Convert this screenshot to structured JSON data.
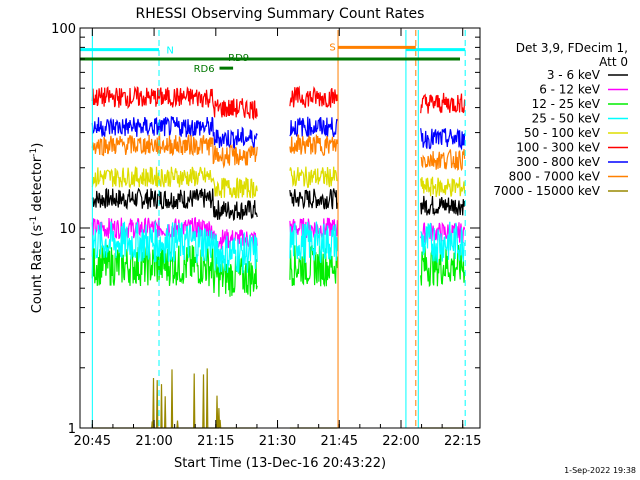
{
  "chart_data": {
    "type": "line",
    "title": "RHESSI Observing Summary Count Rates",
    "xlabel": "Start Time (13-Dec-16 20:43:22)",
    "ylabel_main": "Count Rate (s",
    "ylabel_sup": "-1",
    "ylabel_tail": " detector",
    "ylabel_end": ")",
    "yscale": "log",
    "ylim": [
      1,
      100
    ],
    "xlim_minutes": [
      20.7,
      22.32
    ],
    "x_ticks": [
      {
        "label": "20:45",
        "t": 20.75
      },
      {
        "label": "21:00",
        "t": 21.0
      },
      {
        "label": "21:15",
        "t": 21.25
      },
      {
        "label": "21:30",
        "t": 21.5
      },
      {
        "label": "21:45",
        "t": 21.75
      },
      {
        "label": "22:00",
        "t": 22.0
      },
      {
        "label": "22:15",
        "t": 22.25
      }
    ],
    "y_ticks": [
      {
        "label": "1",
        "v": 1
      },
      {
        "label": "10",
        "v": 10
      },
      {
        "label": "100",
        "v": 100
      }
    ],
    "legend_header": [
      "Det 3,9, FDecim 1,",
      "Att 0"
    ],
    "legend_placement": "right",
    "series": [
      {
        "name": "3 - 6 keV",
        "color": "#000000",
        "level": 14,
        "post_flare": 13
      },
      {
        "name": "6 - 12 keV",
        "color": "#ff00ff",
        "level": 10,
        "post_flare": 9.5
      },
      {
        "name": "12 - 25 keV",
        "color": "#00ee00",
        "level": 6.5,
        "post_flare": 6.5
      },
      {
        "name": "25 - 50 keV",
        "color": "#00ffff",
        "level": 8.5,
        "post_flare": 8.5
      },
      {
        "name": "50 - 100 keV",
        "color": "#dddd00",
        "level": 18,
        "post_flare": 16
      },
      {
        "name": "100 - 300 keV",
        "color": "#ff0000",
        "level": 45,
        "post_flare": 42
      },
      {
        "name": "300 - 800 keV",
        "color": "#0000ff",
        "level": 32,
        "post_flare": 28
      },
      {
        "name": "800 - 7000 keV",
        "color": "#ff8000",
        "level": 26,
        "post_flare": 22
      },
      {
        "name": "7000 - 15000 keV",
        "color": "#998800",
        "level": 1.2,
        "post_flare": 1
      }
    ],
    "data_segments": [
      [
        20.75,
        21.42
      ],
      [
        21.55,
        21.745
      ],
      [
        22.08,
        22.26
      ]
    ],
    "flags": [
      {
        "label": "N",
        "color": "#00ffff",
        "y": 78
      },
      {
        "label": "S",
        "color": "#ff8000",
        "y": 80
      },
      {
        "label": "RD6",
        "color": "#007700",
        "y": 63
      },
      {
        "label": "RD9",
        "color": "#007700",
        "y": 67
      }
    ],
    "vertical_markers": [
      {
        "t": 20.75,
        "color": "#00ffff",
        "style": "solid"
      },
      {
        "t": 21.02,
        "color": "#00ffff",
        "style": "dashed"
      },
      {
        "t": 21.745,
        "color": "#ff8000",
        "style": "solid"
      },
      {
        "t": 22.02,
        "color": "#00ffff",
        "style": "solid"
      },
      {
        "t": 22.06,
        "color": "#ff8000",
        "style": "dashed"
      },
      {
        "t": 22.07,
        "color": "#00ffff",
        "style": "solid"
      },
      {
        "t": 22.26,
        "color": "#00ffff",
        "style": "dashed"
      }
    ],
    "grid": false
  },
  "footer": {
    "timestamp": "1-Sep-2022 19:38"
  }
}
